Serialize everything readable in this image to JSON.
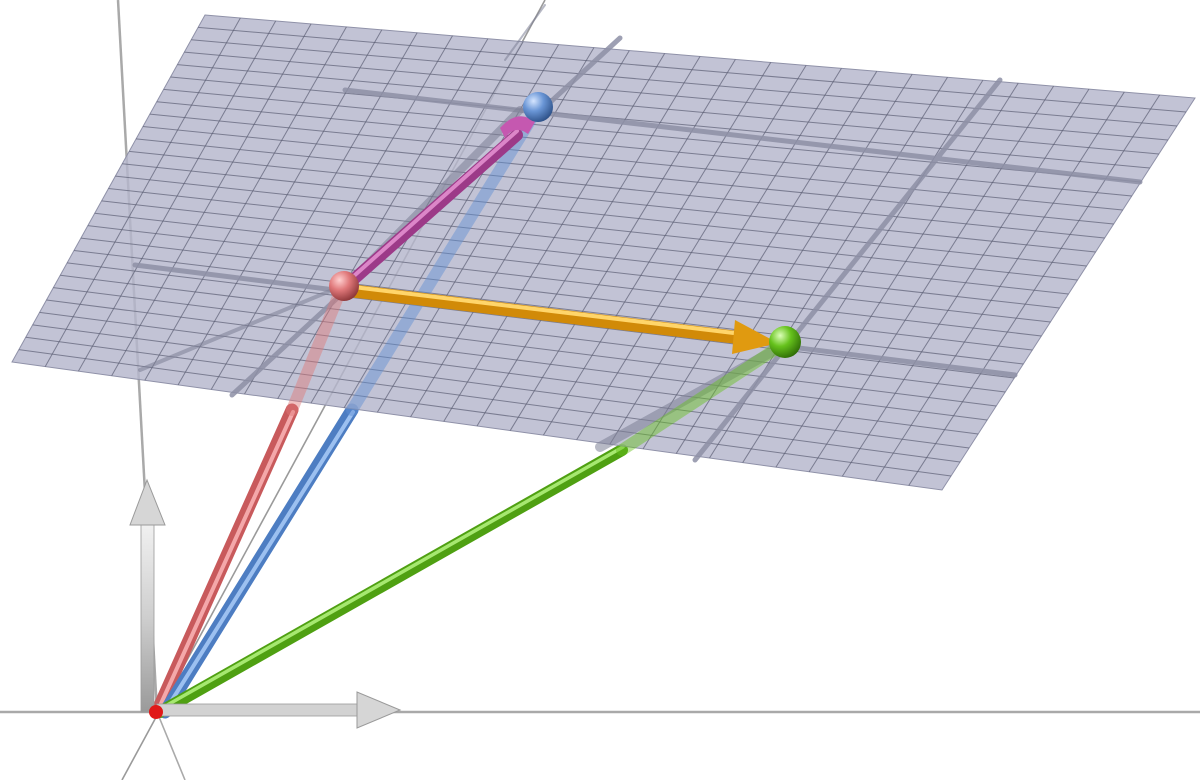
{
  "scene": {
    "background": "#ffffff",
    "plane": {
      "fill": "#b4b6cc",
      "grid_line": "#5b5e74",
      "opacity": 0.82,
      "grid_divisions": 28
    },
    "axes": {
      "color": "#a9a9a9",
      "arrow_color": "#c8c8c8"
    },
    "origin": {
      "color": "#e01818"
    },
    "points": [
      {
        "name": "red",
        "color": "#e0787a"
      },
      {
        "name": "blue",
        "color": "#6a96d6"
      },
      {
        "name": "green",
        "color": "#66c21c"
      }
    ],
    "position_vectors": [
      {
        "to": "red",
        "color": "#e07878"
      },
      {
        "to": "blue",
        "color": "#5f8fd4"
      },
      {
        "to": "green",
        "color": "#66c21c"
      }
    ],
    "plane_vectors": [
      {
        "from": "red",
        "to": "blue",
        "color": "#b84aa0"
      },
      {
        "from": "red",
        "to": "green",
        "color": "#f2a81c"
      }
    ]
  }
}
